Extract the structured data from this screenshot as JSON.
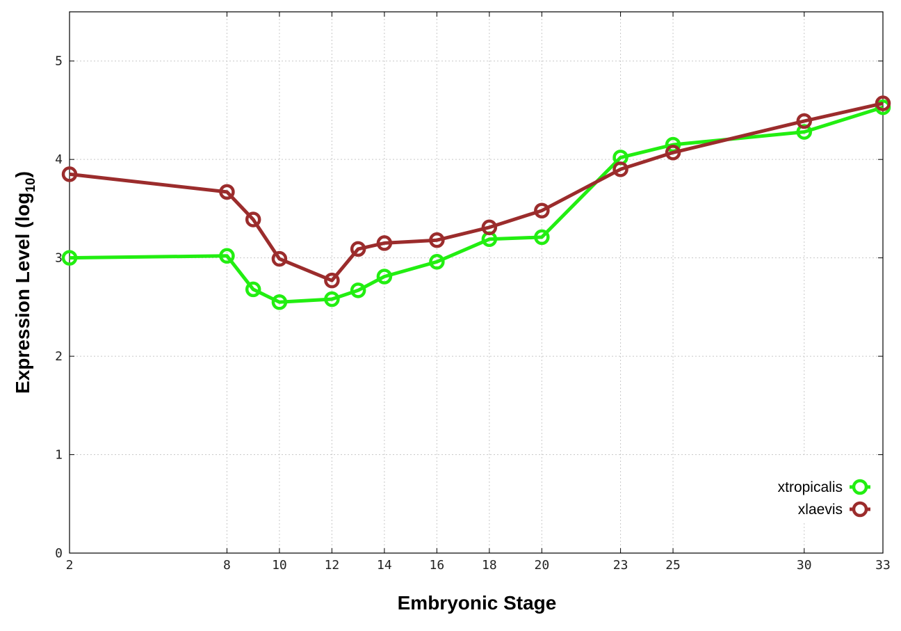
{
  "chart_data": {
    "type": "line",
    "xlabel": "Embryonic Stage",
    "ylabel_main": "Expression Level (log",
    "ylabel_sub": "10",
    "ylabel_close": ")",
    "xlim": [
      2,
      33
    ],
    "ylim": [
      0,
      5.5
    ],
    "x_ticks": [
      2,
      8,
      10,
      12,
      14,
      16,
      18,
      20,
      23,
      25,
      30,
      33
    ],
    "y_ticks": [
      0,
      1,
      2,
      3,
      4,
      5
    ],
    "grid": true,
    "legend_position": "bottom-right",
    "x": [
      2,
      8,
      9,
      10,
      12,
      13,
      14,
      16,
      18,
      20,
      23,
      25,
      30,
      33
    ],
    "series": [
      {
        "name": "xtropicalis",
        "color": "#22ee11",
        "values": [
          3.0,
          3.02,
          2.68,
          2.55,
          2.58,
          2.67,
          2.81,
          2.96,
          3.19,
          3.21,
          4.02,
          4.15,
          4.28,
          4.53
        ]
      },
      {
        "name": "xlaevis",
        "color": "#9b2c2c",
        "values": [
          3.85,
          3.67,
          3.39,
          2.99,
          2.77,
          3.09,
          3.15,
          3.18,
          3.31,
          3.48,
          3.9,
          4.07,
          4.39,
          4.57
        ]
      }
    ]
  }
}
